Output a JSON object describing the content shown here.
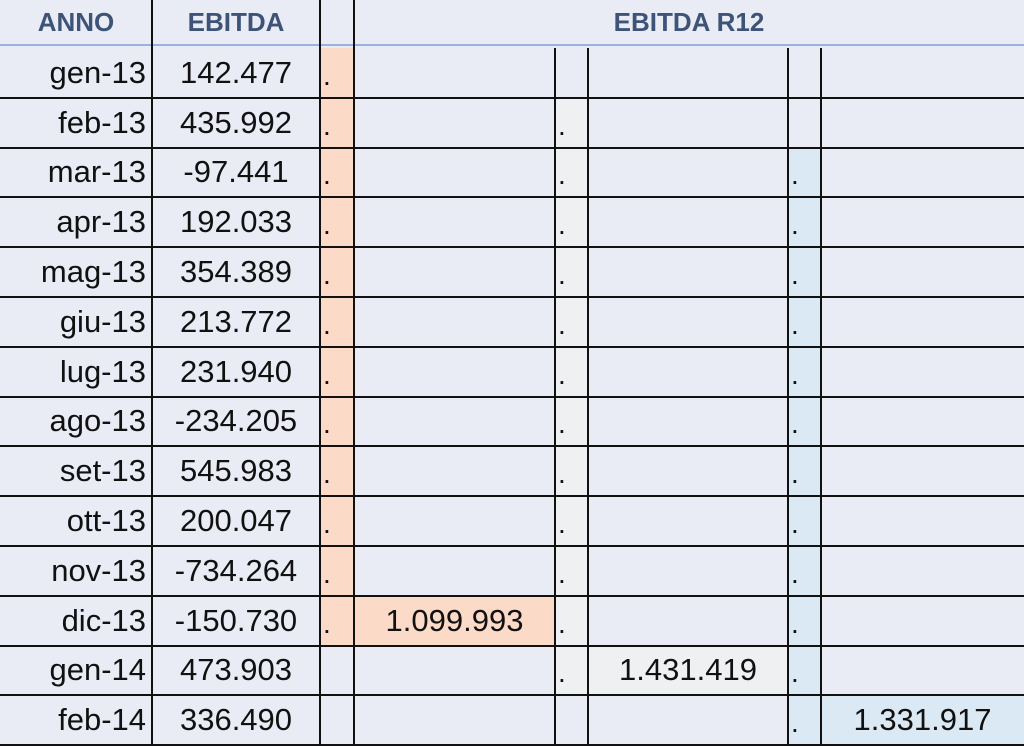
{
  "headers": {
    "anno": "ANNO",
    "ebitda": "EBITDA",
    "ebitda_r12": "EBITDA R12"
  },
  "colors": {
    "peach": "#fbdac8",
    "gray": "#eef0f2",
    "lightblue": "#dbe9f5"
  },
  "rows": [
    {
      "anno": "gen-13",
      "ebitda": "142.477",
      "d1": ".",
      "d2": "",
      "d3": ""
    },
    {
      "anno": "feb-13",
      "ebitda": "435.992",
      "d1": ".",
      "d2": ".",
      "d3": ""
    },
    {
      "anno": "mar-13",
      "ebitda": "-97.441",
      "d1": ".",
      "d2": ".",
      "d3": "."
    },
    {
      "anno": "apr-13",
      "ebitda": "192.033",
      "d1": ".",
      "d2": ".",
      "d3": "."
    },
    {
      "anno": "mag-13",
      "ebitda": "354.389",
      "d1": ".",
      "d2": ".",
      "d3": "."
    },
    {
      "anno": "giu-13",
      "ebitda": "213.772",
      "d1": ".",
      "d2": ".",
      "d3": "."
    },
    {
      "anno": "lug-13",
      "ebitda": "231.940",
      "d1": ".",
      "d2": ".",
      "d3": "."
    },
    {
      "anno": "ago-13",
      "ebitda": "-234.205",
      "d1": ".",
      "d2": ".",
      "d3": "."
    },
    {
      "anno": "set-13",
      "ebitda": "545.983",
      "d1": ".",
      "d2": ".",
      "d3": "."
    },
    {
      "anno": "ott-13",
      "ebitda": "200.047",
      "d1": ".",
      "d2": ".",
      "d3": "."
    },
    {
      "anno": "nov-13",
      "ebitda": "-734.264",
      "d1": ".",
      "d2": ".",
      "d3": "."
    },
    {
      "anno": "dic-13",
      "ebitda": "-150.730",
      "d1": ".",
      "d2": ".",
      "d3": "."
    },
    {
      "anno": "gen-14",
      "ebitda": "473.903",
      "d1": "",
      "d2": ".",
      "d3": "."
    },
    {
      "anno": "feb-14",
      "ebitda": "336.490",
      "d1": "",
      "d2": "",
      "d3": "."
    }
  ],
  "r12_values": {
    "dic13": "1.099.993",
    "gen14": "1.431.419",
    "feb14": "1.331.917"
  }
}
